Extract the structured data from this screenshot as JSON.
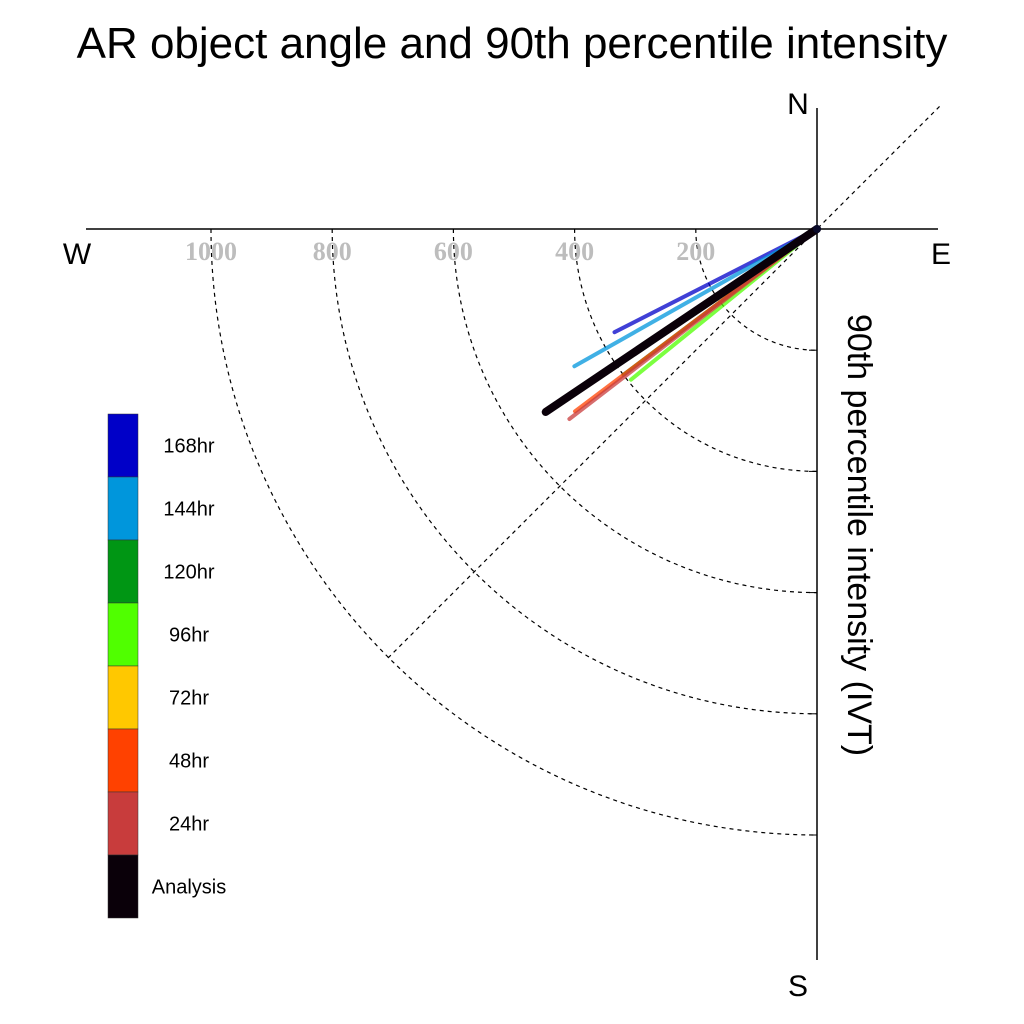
{
  "chart_data": {
    "type": "polar-line",
    "title": "AR object angle and 90th percentile intensity",
    "radial_label": "90th percentile intensity (IVT)",
    "directions": {
      "north": "N",
      "south": "S",
      "east": "E",
      "west": "W"
    },
    "radial_ticks": [
      200,
      400,
      600,
      800,
      1000
    ],
    "radial_tick_labels": [
      "200",
      "400",
      "600",
      "800",
      "1000"
    ],
    "rmax": 1200,
    "angle_unit": "degrees below west (clockwise from W)",
    "series": [
      {
        "name": "168hr",
        "color": "#0000c8",
        "angle": 27,
        "intensity": 375
      },
      {
        "name": "144hr",
        "color": "#0096dc",
        "angle": 29.5,
        "intensity": 460
      },
      {
        "name": "120hr",
        "color": "#009614",
        "angle": 37,
        "intensity": 400
      },
      {
        "name": "96hr",
        "color": "#50ff00",
        "angle": 39,
        "intensity": 395
      },
      {
        "name": "72hr",
        "color": "#ffc800",
        "angle": 34,
        "intensity": 510
      },
      {
        "name": "48hr",
        "color": "#ff4100",
        "angle": 37,
        "intensity": 500
      },
      {
        "name": "24hr",
        "color": "#c83c3c",
        "angle": 37.5,
        "intensity": 515
      },
      {
        "name": "Analysis",
        "color": "#0a0009",
        "angle": 34,
        "intensity": 540
      }
    ],
    "legend": {
      "placement": "left",
      "items": [
        {
          "label": "168hr",
          "color": "#0000c8"
        },
        {
          "label": "144hr",
          "color": "#0096dc"
        },
        {
          "label": "120hr",
          "color": "#009614"
        },
        {
          "label": "96hr",
          "color": "#50ff00"
        },
        {
          "label": "72hr",
          "color": "#ffc800"
        },
        {
          "label": "48hr",
          "color": "#ff4100"
        },
        {
          "label": "24hr",
          "color": "#c83c3c"
        },
        {
          "label": "Analysis",
          "color": "#0a0009"
        }
      ]
    }
  }
}
